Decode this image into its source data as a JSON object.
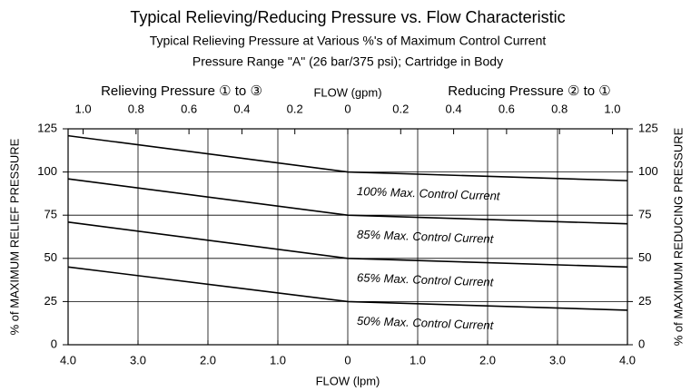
{
  "chart_data": {
    "type": "line",
    "title": "Typical Relieving/Reducing Pressure vs. Flow Characteristic",
    "subtitle": [
      "Typical Relieving Pressure at Various %'s of Maximum Control Current",
      "Pressure Range \"A\" (26 bar/375 psi); Cartridge in Body"
    ],
    "x_label": "FLOW (lpm)",
    "x2_label": "FLOW (gpm)",
    "x2_left_label": "Relieving Pressure ① to ③",
    "x2_right_label": "Reducing Pressure ② to ①",
    "y_label": "% of MAXIMUM RELIEF PRESSURE",
    "y2_label": "% of MAXIMUM REDUCING PRESSURE",
    "x": [
      -4,
      0,
      4
    ],
    "xlim": [
      -4,
      4
    ],
    "xticks": [
      {
        "value": -4,
        "label": "4.0"
      },
      {
        "value": -3,
        "label": "3.0"
      },
      {
        "value": -2,
        "label": "2.0"
      },
      {
        "value": -1,
        "label": "1.0"
      },
      0,
      {
        "value": 1,
        "label": "1.0"
      },
      {
        "value": 2,
        "label": "2.0"
      },
      {
        "value": 3,
        "label": "3.0"
      },
      {
        "value": 4,
        "label": "4.0"
      }
    ],
    "x2lim": [
      -1.0567,
      1.0567
    ],
    "x2ticks": [
      {
        "value": -1,
        "label": "1.0"
      },
      {
        "value": -0.8,
        "label": "0.8"
      },
      {
        "value": -0.6,
        "label": "0.6"
      },
      {
        "value": -0.4,
        "label": "0.4"
      },
      {
        "value": -0.2,
        "label": "0.2"
      },
      0,
      0.2,
      0.4,
      0.6,
      0.8,
      {
        "value": 1,
        "label": "1.0"
      }
    ],
    "ylim": [
      0,
      125
    ],
    "yticks": [
      0,
      25,
      50,
      75,
      100,
      125
    ],
    "y2lim": [
      0,
      125
    ],
    "y2ticks": [
      0,
      25,
      50,
      75,
      100,
      125
    ],
    "grid": true,
    "series": [
      {
        "name": "100% Max. Control Current",
        "color": "#000000",
        "values": [
          121,
          100,
          95
        ]
      },
      {
        "name": "85% Max. Control Current",
        "color": "#000000",
        "values": [
          96,
          75,
          70
        ]
      },
      {
        "name": "65% Max. Control Current",
        "color": "#000000",
        "values": [
          71,
          50,
          45
        ]
      },
      {
        "name": "50% Max. Control Current",
        "color": "#000000",
        "values": [
          45,
          25,
          20
        ]
      }
    ]
  }
}
